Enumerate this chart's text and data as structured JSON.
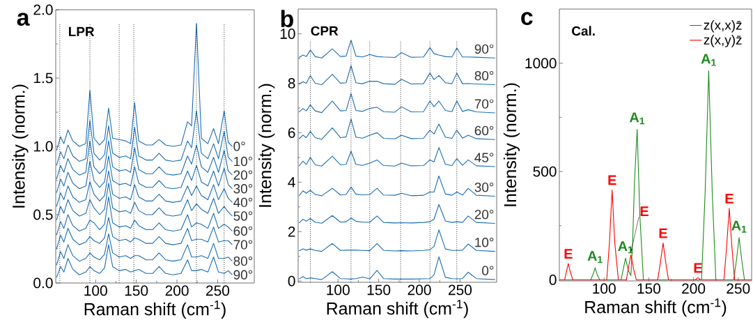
{
  "chart_data": [
    {
      "type": "line",
      "title": "a",
      "xlabel": "Raman shift (cm$^{-1}$)",
      "ylabel": "Intensity (norm.)",
      "annotations": [
        "LPR"
      ],
      "xlim": [
        51,
        295
      ],
      "ylim": [
        0,
        2
      ],
      "xticks": [
        100,
        150,
        200,
        250
      ],
      "yticks": [
        {
          "value": 0,
          "label": "0.0"
        },
        {
          "value": 0.5,
          "label": "0.5"
        },
        {
          "value": 1,
          "label": "1.0"
        },
        {
          "value": 1.5,
          "label": "1.5"
        },
        {
          "value": 2,
          "label": "2.0"
        }
      ],
      "ref_lines": [
        {
          "axis": "x",
          "value": 56,
          "color": "#000000",
          "line_style": "dotted"
        },
        {
          "axis": "x",
          "value": 93,
          "color": "#000000",
          "line_style": "dotted"
        },
        {
          "axis": "x",
          "value": 129,
          "color": "#000000",
          "line_style": "dotted"
        },
        {
          "axis": "x",
          "value": 147,
          "color": "#000000",
          "line_style": "dotted"
        },
        {
          "axis": "x",
          "value": 224,
          "color": "#000000",
          "line_style": "dotted"
        },
        {
          "axis": "x",
          "value": 258,
          "color": "#000000",
          "line_style": "dotted"
        }
      ],
      "x": [
        52,
        57,
        61,
        66,
        72,
        80,
        88,
        93,
        98,
        105,
        111,
        116,
        121,
        129,
        137,
        143,
        148,
        153,
        162,
        170,
        178,
        186,
        195,
        205,
        213,
        218,
        224,
        230,
        238,
        245,
        251,
        258,
        263,
        268
      ],
      "series": [
        {
          "name": "0°",
          "color": "#1a6db5",
          "values": [
            0.97,
            1.07,
            1.02,
            1.12,
            1.04,
            1.0,
            1.02,
            1.41,
            1.06,
            1.01,
            1.05,
            1.28,
            1.06,
            1.05,
            1.04,
            1.02,
            1.32,
            1.04,
            1.01,
            1.01,
            1.05,
            1.01,
            1.0,
            1.01,
            1.18,
            1.15,
            1.9,
            1.06,
            1.02,
            1.13,
            1.02,
            1.26,
            1.03,
            1.0
          ]
        },
        {
          "name": "10°",
          "color": "#1a6db5",
          "values": [
            0.86,
            0.96,
            0.91,
            1.01,
            0.93,
            0.89,
            0.91,
            1.19,
            0.95,
            0.9,
            0.94,
            1.15,
            0.95,
            0.92,
            0.93,
            0.91,
            1.14,
            0.93,
            0.9,
            0.9,
            0.95,
            0.9,
            0.89,
            0.9,
            1.04,
            0.99,
            1.26,
            0.95,
            0.91,
            1.02,
            0.91,
            1.11,
            0.92,
            0.89
          ]
        },
        {
          "name": "20°",
          "color": "#1a6db5",
          "values": [
            0.76,
            0.86,
            0.81,
            0.91,
            0.83,
            0.79,
            0.81,
            1.04,
            0.85,
            0.8,
            0.84,
            1.04,
            0.85,
            0.82,
            0.83,
            0.81,
            0.99,
            0.83,
            0.8,
            0.8,
            0.85,
            0.8,
            0.79,
            0.8,
            0.93,
            0.87,
            1.01,
            0.85,
            0.81,
            0.92,
            0.81,
            0.97,
            0.82,
            0.79
          ]
        },
        {
          "name": "30°",
          "color": "#1a6db5",
          "values": [
            0.66,
            0.76,
            0.71,
            0.81,
            0.73,
            0.69,
            0.71,
            0.89,
            0.75,
            0.7,
            0.74,
            0.93,
            0.75,
            0.72,
            0.73,
            0.71,
            0.85,
            0.73,
            0.7,
            0.7,
            0.75,
            0.7,
            0.69,
            0.7,
            0.82,
            0.75,
            0.86,
            0.74,
            0.71,
            0.82,
            0.71,
            0.84,
            0.72,
            0.69
          ]
        },
        {
          "name": "40°",
          "color": "#1a6db5",
          "values": [
            0.56,
            0.66,
            0.61,
            0.71,
            0.63,
            0.59,
            0.61,
            0.74,
            0.65,
            0.6,
            0.64,
            0.82,
            0.65,
            0.62,
            0.63,
            0.61,
            0.72,
            0.63,
            0.6,
            0.6,
            0.65,
            0.6,
            0.59,
            0.6,
            0.71,
            0.64,
            0.71,
            0.64,
            0.61,
            0.72,
            0.61,
            0.69,
            0.62,
            0.59
          ]
        },
        {
          "name": "50°",
          "color": "#1a6db5",
          "values": [
            0.46,
            0.56,
            0.51,
            0.61,
            0.53,
            0.49,
            0.51,
            0.61,
            0.55,
            0.5,
            0.54,
            0.73,
            0.55,
            0.52,
            0.53,
            0.51,
            0.59,
            0.53,
            0.5,
            0.5,
            0.55,
            0.5,
            0.49,
            0.5,
            0.61,
            0.53,
            0.58,
            0.54,
            0.51,
            0.62,
            0.51,
            0.56,
            0.52,
            0.49
          ]
        },
        {
          "name": "60°",
          "color": "#1a6db5",
          "values": [
            0.35,
            0.45,
            0.4,
            0.5,
            0.42,
            0.38,
            0.4,
            0.46,
            0.44,
            0.39,
            0.43,
            0.63,
            0.44,
            0.41,
            0.42,
            0.4,
            0.46,
            0.42,
            0.39,
            0.39,
            0.44,
            0.39,
            0.38,
            0.39,
            0.5,
            0.41,
            0.44,
            0.43,
            0.4,
            0.51,
            0.4,
            0.43,
            0.41,
            0.38
          ]
        },
        {
          "name": "70°",
          "color": "#1a6db5",
          "values": [
            0.25,
            0.35,
            0.3,
            0.4,
            0.32,
            0.28,
            0.3,
            0.34,
            0.31,
            0.29,
            0.33,
            0.48,
            0.34,
            0.31,
            0.32,
            0.3,
            0.33,
            0.32,
            0.29,
            0.29,
            0.34,
            0.29,
            0.28,
            0.29,
            0.4,
            0.31,
            0.32,
            0.32,
            0.3,
            0.41,
            0.3,
            0.31,
            0.31,
            0.28
          ]
        },
        {
          "name": "80°",
          "color": "#1a6db5",
          "values": [
            0.13,
            0.23,
            0.18,
            0.28,
            0.2,
            0.16,
            0.18,
            0.22,
            0.19,
            0.17,
            0.21,
            0.36,
            0.22,
            0.19,
            0.2,
            0.18,
            0.2,
            0.2,
            0.17,
            0.17,
            0.22,
            0.17,
            0.16,
            0.17,
            0.28,
            0.19,
            0.19,
            0.2,
            0.18,
            0.29,
            0.18,
            0.18,
            0.19,
            0.16
          ]
        },
        {
          "name": "90°",
          "color": "#1a6db5",
          "values": [
            0.04,
            0.12,
            0.08,
            0.18,
            0.1,
            0.06,
            0.08,
            0.12,
            0.09,
            0.07,
            0.11,
            0.28,
            0.12,
            0.09,
            0.1,
            0.08,
            0.09,
            0.1,
            0.07,
            0.07,
            0.12,
            0.07,
            0.06,
            0.07,
            0.17,
            0.09,
            0.09,
            0.1,
            0.08,
            0.19,
            0.08,
            0.07,
            0.09,
            0.06
          ]
        }
      ]
    },
    {
      "type": "line",
      "title": "b",
      "xlabel": "Raman shift (cm$^{-1}$)",
      "ylabel": "Intensity (norm.)",
      "annotations": [
        "CPR"
      ],
      "xlim": [
        51,
        295
      ],
      "ylim": [
        -0.05,
        11
      ],
      "xticks": [
        100,
        150,
        200,
        250
      ],
      "yticks": [
        0,
        2,
        4,
        6,
        8,
        10
      ],
      "ref_lines": [
        {
          "axis": "x",
          "value": 66,
          "color": "#000000",
          "line_style": "dotted"
        },
        {
          "axis": "x",
          "value": 116,
          "color": "#000000",
          "line_style": "dotted"
        },
        {
          "axis": "x",
          "value": 139,
          "color": "#000000",
          "line_style": "dotted"
        },
        {
          "axis": "x",
          "value": 177,
          "color": "#000000",
          "line_style": "dotted"
        },
        {
          "axis": "x",
          "value": 213,
          "color": "#000000",
          "line_style": "dotted"
        },
        {
          "axis": "x",
          "value": 246,
          "color": "#000000",
          "line_style": "dotted"
        }
      ],
      "x": [
        52,
        57,
        61,
        66,
        72,
        80,
        93,
        103,
        110,
        116,
        122,
        130,
        139,
        148,
        156,
        170,
        178,
        190,
        205,
        213,
        218,
        224,
        232,
        240,
        246,
        253,
        260,
        270,
        293
      ],
      "series": [
        {
          "name": "0°",
          "color": "#1a6db5",
          "values": [
            0.08,
            0.18,
            0.1,
            0.13,
            0.1,
            0.06,
            0.38,
            0.1,
            0.09,
            0.08,
            0.1,
            0.16,
            0.09,
            0.43,
            0.1,
            0.08,
            0.08,
            0.08,
            0.09,
            0.1,
            0.25,
            0.98,
            0.15,
            0.1,
            0.09,
            0.1,
            0.36,
            0.1,
            0.06
          ]
        },
        {
          "name": "10°",
          "color": "#1a6db5",
          "values": [
            1.22,
            1.3,
            1.25,
            1.3,
            1.24,
            1.2,
            1.52,
            1.24,
            1.25,
            1.25,
            1.25,
            1.24,
            1.23,
            1.52,
            1.24,
            1.22,
            1.23,
            1.22,
            1.24,
            1.27,
            1.4,
            2.07,
            1.3,
            1.24,
            1.24,
            1.25,
            1.5,
            1.24,
            1.2
          ]
        },
        {
          "name": "20°",
          "color": "#1a6db5",
          "values": [
            2.35,
            2.5,
            2.42,
            2.53,
            2.38,
            2.34,
            2.65,
            2.38,
            2.4,
            2.55,
            2.42,
            2.38,
            2.38,
            2.63,
            2.37,
            2.35,
            2.36,
            2.35,
            2.37,
            2.4,
            2.5,
            3.1,
            2.43,
            2.37,
            2.4,
            2.37,
            2.63,
            2.37,
            2.33
          ]
        },
        {
          "name": "30°",
          "color": "#1a6db5",
          "values": [
            3.45,
            3.65,
            3.55,
            3.67,
            3.5,
            3.45,
            3.75,
            3.48,
            3.5,
            3.8,
            3.52,
            3.48,
            3.5,
            3.75,
            3.48,
            3.47,
            3.55,
            3.45,
            3.47,
            3.6,
            3.6,
            4.25,
            3.52,
            3.47,
            3.6,
            3.48,
            3.75,
            3.47,
            3.43
          ]
        },
        {
          "name": "45°",
          "color": "#1a6db5",
          "values": [
            4.65,
            4.85,
            4.72,
            5.0,
            4.7,
            4.65,
            5.05,
            4.7,
            4.72,
            5.25,
            4.72,
            4.68,
            4.77,
            4.9,
            4.67,
            4.65,
            4.77,
            4.66,
            4.67,
            4.9,
            4.82,
            5.4,
            4.72,
            4.67,
            4.95,
            4.68,
            4.9,
            4.66,
            4.63
          ]
        },
        {
          "name": "60°",
          "color": "#1a6db5",
          "values": [
            5.75,
            5.9,
            5.8,
            6.05,
            5.8,
            5.73,
            6.2,
            5.8,
            5.83,
            6.55,
            5.82,
            5.78,
            5.9,
            6.0,
            5.77,
            5.75,
            5.9,
            5.76,
            5.77,
            6.1,
            5.95,
            6.35,
            5.82,
            5.77,
            6.1,
            5.78,
            5.9,
            5.76,
            5.72
          ]
        },
        {
          "name": "70°",
          "color": "#1a6db5",
          "values": [
            6.83,
            6.98,
            6.88,
            7.13,
            6.88,
            6.81,
            7.28,
            6.88,
            6.9,
            7.58,
            6.9,
            6.86,
            6.98,
            7.03,
            6.85,
            6.83,
            7.05,
            6.84,
            6.85,
            7.28,
            7.05,
            7.28,
            6.9,
            6.85,
            7.28,
            6.86,
            6.93,
            6.84,
            6.8
          ]
        },
        {
          "name": "80°",
          "color": "#1a6db5",
          "values": [
            7.96,
            8.06,
            8.0,
            8.31,
            8.0,
            7.94,
            8.36,
            8.0,
            8.02,
            8.71,
            8.02,
            7.98,
            8.08,
            8.08,
            7.98,
            7.96,
            8.16,
            7.97,
            7.98,
            8.41,
            8.15,
            8.31,
            8.02,
            7.98,
            8.41,
            7.98,
            7.99,
            7.97,
            7.94
          ]
        },
        {
          "name": "90°",
          "color": "#1a6db5",
          "values": [
            9.04,
            9.14,
            9.08,
            9.34,
            9.08,
            9.02,
            9.39,
            9.08,
            9.1,
            9.74,
            9.1,
            9.06,
            9.16,
            9.08,
            9.06,
            9.04,
            9.24,
            9.05,
            9.06,
            9.44,
            9.2,
            9.14,
            9.08,
            9.06,
            9.42,
            9.06,
            9.06,
            9.05,
            9.02
          ]
        }
      ]
    },
    {
      "type": "line",
      "title": "c",
      "xlabel": "Raman shift (cm$^{-1}$)",
      "ylabel": "Intensity (norm.)",
      "legend": "top right",
      "annotations": [
        "Cal.",
        {
          "text": "E",
          "x": 60,
          "y": 75
        },
        {
          "text": "A$_{1}$",
          "x": 90,
          "y": 55
        },
        {
          "text": "E",
          "x": 109,
          "y": 415
        },
        {
          "text": "A$_{1}$",
          "x": 124,
          "y": 100
        },
        {
          "text": "E",
          "x": 130,
          "y": 115
        },
        {
          "text": "A$_{1}$",
          "x": 137,
          "y": 695
        },
        {
          "text": "E",
          "x": 166,
          "y": 170
        },
        {
          "text": "E",
          "x": 205,
          "y": 10
        },
        {
          "text": "A$_{1}$",
          "x": 217,
          "y": 965
        },
        {
          "text": "E",
          "x": 240,
          "y": 330
        },
        {
          "text": "A$_{1}$",
          "x": 251,
          "y": 195
        }
      ],
      "xlim": [
        50,
        265
      ],
      "ylim": [
        -5,
        1250
      ],
      "xticks": [
        100,
        150,
        200,
        250
      ],
      "yticks": [
        0,
        500,
        1000
      ],
      "series": [
        {
          "name": "z(x,x)z̄",
          "color": "#1e8a1e",
          "x": [
            50,
            85,
            88,
            90,
            92,
            95,
            119,
            122,
            124,
            127,
            130,
            132,
            134,
            137,
            140,
            144,
            209,
            213,
            217,
            221,
            225,
            245,
            248,
            251,
            254,
            257,
            265
          ],
          "values": [
            0,
            0,
            28,
            55,
            28,
            0,
            0,
            60,
            100,
            45,
            20,
            180,
            450,
            695,
            300,
            0,
            0,
            400,
            965,
            400,
            0,
            0,
            90,
            195,
            90,
            0,
            0
          ]
        },
        {
          "name": "z(x,y)z̄",
          "color": "#ff0000",
          "x": [
            50,
            56,
            58,
            60,
            62,
            65,
            103,
            106,
            109,
            112,
            116,
            125,
            127,
            130,
            133,
            136,
            160,
            163,
            166,
            169,
            172,
            202,
            205,
            208,
            234,
            237,
            240,
            243,
            246,
            265
          ],
          "values": [
            0,
            0,
            40,
            75,
            40,
            0,
            0,
            170,
            415,
            170,
            0,
            0,
            50,
            115,
            50,
            0,
            0,
            80,
            170,
            80,
            0,
            0,
            10,
            0,
            0,
            150,
            330,
            150,
            0,
            0
          ]
        }
      ]
    }
  ]
}
